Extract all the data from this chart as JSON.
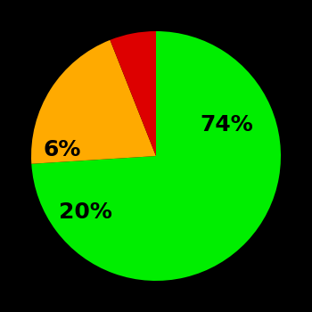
{
  "slices": [
    74,
    20,
    6
  ],
  "colors": [
    "#00ee00",
    "#ffaa00",
    "#dd0000"
  ],
  "labels": [
    "74%",
    "20%",
    "6%"
  ],
  "background_color": "#000000",
  "startangle": 90,
  "figsize": [
    3.5,
    3.5
  ],
  "dpi": 100,
  "label_fontsize": 18,
  "label_fontweight": "bold"
}
